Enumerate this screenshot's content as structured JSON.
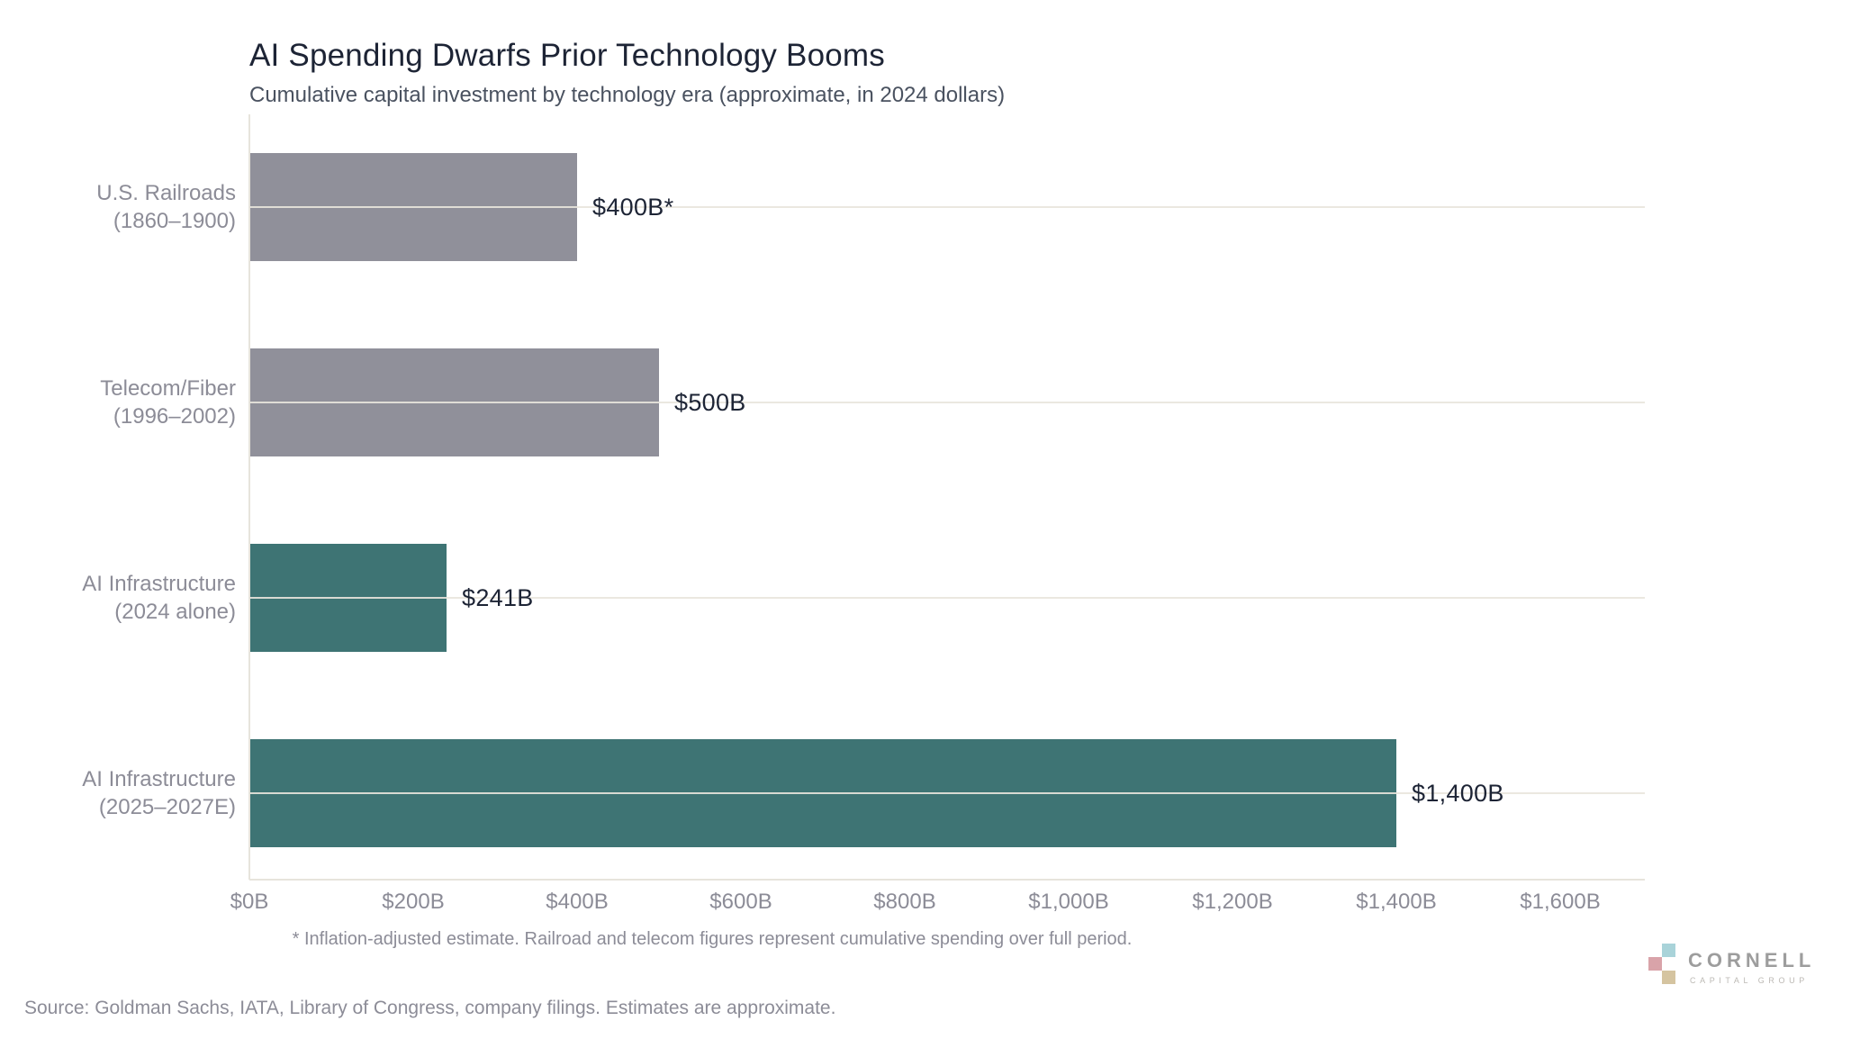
{
  "title": "AI Spending Dwarfs Prior Technology Booms",
  "subtitle": "Cumulative capital investment by technology era (approximate, in 2024 dollars)",
  "footnote": "* Inflation-adjusted estimate. Railroad and telecom figures represent cumulative spending over full period.",
  "source": "Source: Goldman Sachs, IATA, Library of Congress, company filings. Estimates are approximate.",
  "colors": {
    "bar_gray": "#90909a",
    "bar_teal": "#3e7474",
    "value_text": "#1d2435",
    "axis_text": "#8c8c97",
    "gridline": "#e9e6de"
  },
  "chart_data": {
    "type": "bar",
    "orientation": "horizontal",
    "title": "AI Spending Dwarfs Prior Technology Booms",
    "subtitle": "Cumulative capital investment by technology era (approximate, in 2024 dollars)",
    "xlabel": "",
    "ylabel": "",
    "xlim": [
      0,
      1700
    ],
    "x_tick_values": [
      0,
      200,
      400,
      600,
      800,
      1000,
      1200,
      1400,
      1600
    ],
    "x_ticks": [
      "$0B",
      "$200B",
      "$400B",
      "$600B",
      "$800B",
      "$1,000B",
      "$1,200B",
      "$1,400B",
      "$1,600B"
    ],
    "grid": "horizontal gridline through each category center",
    "legend": "none",
    "bars": [
      {
        "label_line1": "U.S. Railroads",
        "label_line2": "(1860–1900)",
        "value": 400,
        "value_label": "$400B*",
        "color": "#90909a"
      },
      {
        "label_line1": "Telecom/Fiber",
        "label_line2": "(1996–2002)",
        "value": 500,
        "value_label": "$500B",
        "color": "#90909a"
      },
      {
        "label_line1": "AI Infrastructure",
        "label_line2": "(2024 alone)",
        "value": 241,
        "value_label": "$241B",
        "color": "#3e7474"
      },
      {
        "label_line1": "AI Infrastructure",
        "label_line2": "(2025–2027E)",
        "value": 1400,
        "value_label": "$1,400B",
        "color": "#3e7474"
      }
    ]
  },
  "logo": {
    "name": "CORNELL",
    "tagline": "CAPITAL GROUP",
    "square_colors": [
      "#a9d3d9",
      "#d9a3a9",
      "#d5c4a0"
    ]
  }
}
